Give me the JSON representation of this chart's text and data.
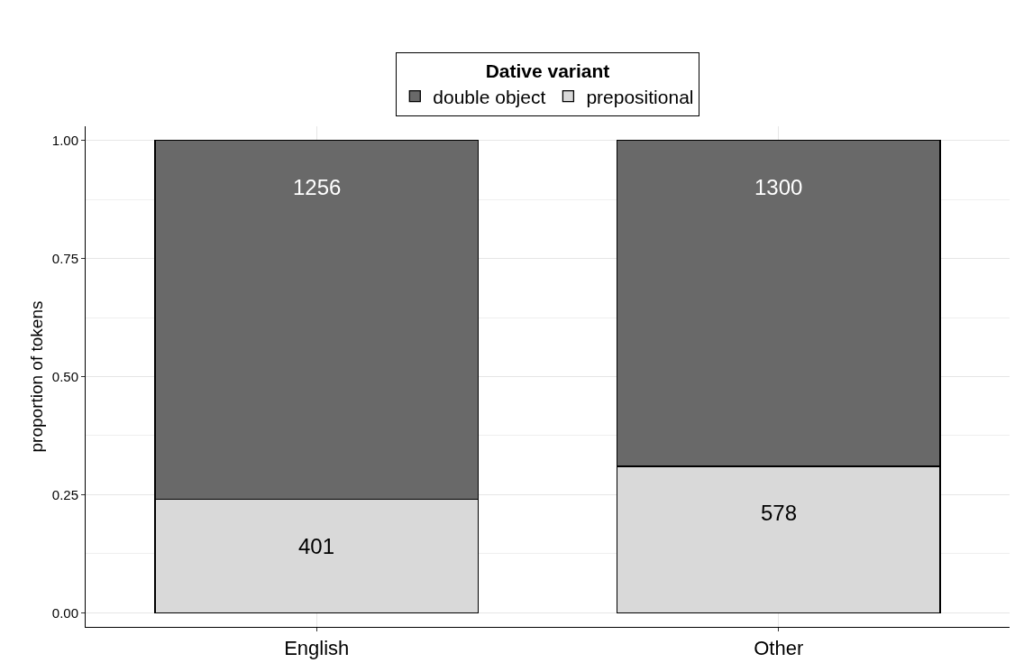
{
  "chart_data": {
    "type": "bar",
    "stacked": true,
    "legend_title": "Dative variant",
    "ylabel": "proportion of tokens",
    "categories": [
      "English",
      "Other"
    ],
    "series": [
      {
        "name": "prepositional",
        "color": "#d9d9d9",
        "values": [
          0.24,
          0.31
        ]
      },
      {
        "name": "double object",
        "color": "#696969",
        "values": [
          0.76,
          0.69
        ]
      }
    ],
    "annotations": [
      {
        "text": "401",
        "x": "English",
        "y": 0.24
      },
      {
        "text": "578",
        "x": "Other",
        "y": 0.31
      },
      {
        "text": "1256",
        "x": "English",
        "y": 1.0
      },
      {
        "text": "1300",
        "x": "Other",
        "y": 1.0
      }
    ],
    "ylim": [
      -0.03,
      1.03
    ],
    "yticks": [
      {
        "value": 0,
        "label": "0.00"
      },
      {
        "value": 0.25,
        "label": "0.25"
      },
      {
        "value": 0.5,
        "label": "0.50"
      },
      {
        "value": 0.75,
        "label": "0.75"
      },
      {
        "value": 1,
        "label": "1.00"
      }
    ],
    "grid": true,
    "legend": "top"
  }
}
